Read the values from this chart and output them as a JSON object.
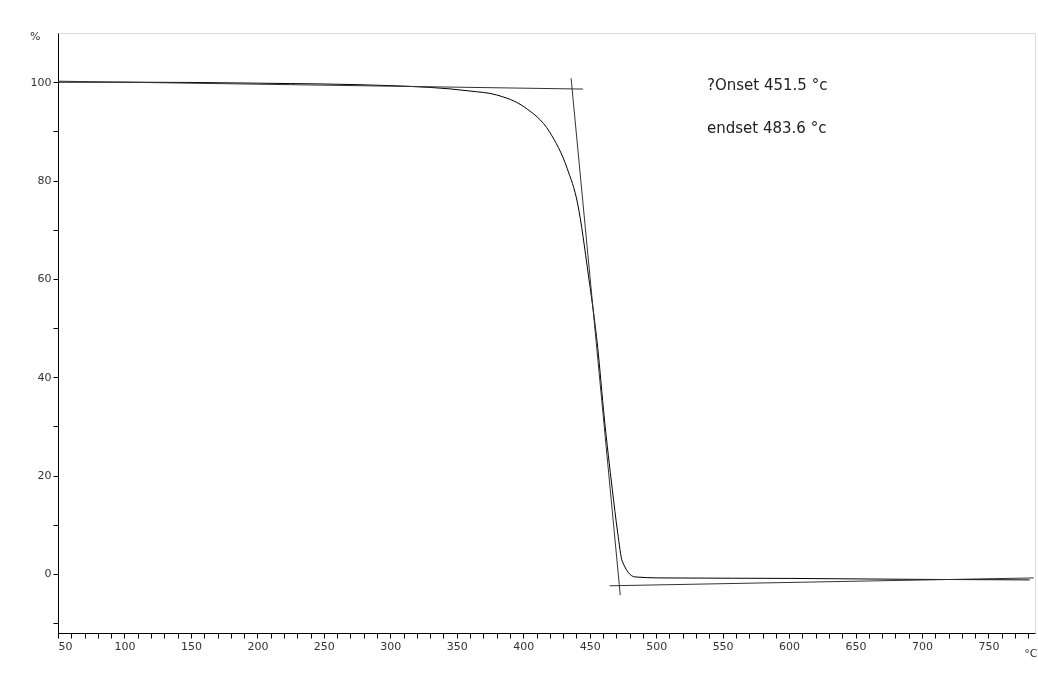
{
  "chart_data": {
    "type": "line",
    "xlabel": "°C",
    "ylabel": "%",
    "xlim": [
      50,
      785
    ],
    "ylim": [
      -12,
      110
    ],
    "xticks": [
      50,
      {
        "value": 60,
        "label": null
      },
      {
        "value": 70,
        "label": null
      },
      {
        "value": 80,
        "label": null
      },
      {
        "value": 90,
        "label": null
      },
      100,
      {
        "value": 110,
        "label": null
      },
      {
        "value": 120,
        "label": null
      },
      {
        "value": 130,
        "label": null
      },
      {
        "value": 140,
        "label": null
      },
      150,
      {
        "value": 160,
        "label": null
      },
      {
        "value": 170,
        "label": null
      },
      {
        "value": 180,
        "label": null
      },
      {
        "value": 190,
        "label": null
      },
      200,
      {
        "value": 210,
        "label": null
      },
      {
        "value": 220,
        "label": null
      },
      {
        "value": 230,
        "label": null
      },
      {
        "value": 240,
        "label": null
      },
      250,
      {
        "value": 260,
        "label": null
      },
      {
        "value": 270,
        "label": null
      },
      {
        "value": 280,
        "label": null
      },
      {
        "value": 290,
        "label": null
      },
      300,
      {
        "value": 310,
        "label": null
      },
      {
        "value": 320,
        "label": null
      },
      {
        "value": 330,
        "label": null
      },
      {
        "value": 340,
        "label": null
      },
      350,
      {
        "value": 360,
        "label": null
      },
      {
        "value": 370,
        "label": null
      },
      {
        "value": 380,
        "label": null
      },
      {
        "value": 390,
        "label": null
      },
      400,
      {
        "value": 410,
        "label": null
      },
      {
        "value": 420,
        "label": null
      },
      {
        "value": 430,
        "label": null
      },
      {
        "value": 440,
        "label": null
      },
      450,
      {
        "value": 460,
        "label": null
      },
      {
        "value": 470,
        "label": null
      },
      {
        "value": 480,
        "label": null
      },
      {
        "value": 490,
        "label": null
      },
      500,
      {
        "value": 510,
        "label": null
      },
      {
        "value": 520,
        "label": null
      },
      {
        "value": 530,
        "label": null
      },
      {
        "value": 540,
        "label": null
      },
      550,
      {
        "value": 560,
        "label": null
      },
      {
        "value": 570,
        "label": null
      },
      {
        "value": 580,
        "label": null
      },
      {
        "value": 590,
        "label": null
      },
      600,
      {
        "value": 610,
        "label": null
      },
      {
        "value": 620,
        "label": null
      },
      {
        "value": 630,
        "label": null
      },
      {
        "value": 640,
        "label": null
      },
      650,
      {
        "value": 660,
        "label": null
      },
      {
        "value": 670,
        "label": null
      },
      {
        "value": 680,
        "label": null
      },
      {
        "value": 690,
        "label": null
      },
      700,
      {
        "value": 710,
        "label": null
      },
      {
        "value": 720,
        "label": null
      },
      {
        "value": 730,
        "label": null
      },
      {
        "value": 740,
        "label": null
      },
      750,
      {
        "value": 760,
        "label": null
      },
      {
        "value": 770,
        "label": null
      },
      {
        "value": 780,
        "label": null
      }
    ],
    "yticks": [
      {
        "value": -10,
        "label": null
      },
      0,
      {
        "value": 10,
        "label": null
      },
      20,
      {
        "value": 30,
        "label": null
      },
      40,
      {
        "value": 50,
        "label": null
      },
      60,
      {
        "value": 70,
        "label": null
      },
      80,
      {
        "value": 90,
        "label": null
      },
      100
    ],
    "grid": false,
    "legend": false,
    "marker": "none",
    "line_style": "solid",
    "series": [
      {
        "color": "#000000",
        "x": [
          50,
          100,
          200,
          300,
          360,
          380,
          401,
          420,
          433,
          441,
          449,
          456,
          461,
          467,
          471,
          474.5,
          484,
          502,
          600,
          700,
          781
        ],
        "values": [
          100,
          100,
          99.8,
          99.3,
          98.2,
          97.4,
          94.9,
          89.8,
          82.5,
          75.2,
          60.8,
          46.1,
          31.7,
          17.2,
          8.5,
          2.6,
          -0.6,
          -0.8,
          -0.9,
          -1.1,
          -1.2
        ]
      },
      {
        "color": "#333333",
        "x": [
          50,
          445
        ],
        "values": [
          100.2,
          98.6
        ]
      },
      {
        "color": "#333333",
        "x": [
          436,
          473
        ],
        "values": [
          100.8,
          -4.3
        ]
      },
      {
        "color": "#333333",
        "x": [
          465,
          784
        ],
        "values": [
          -2.4,
          -0.8
        ]
      }
    ],
    "annotations": [
      "?Onset 451.5 °c",
      "endset 483.6 °c"
    ]
  }
}
